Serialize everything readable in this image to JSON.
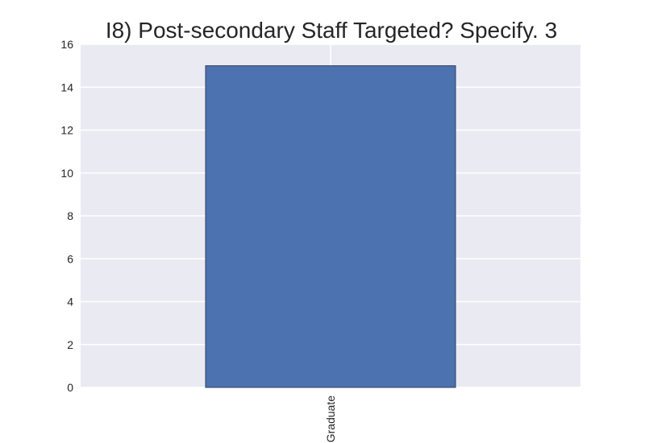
{
  "chart_data": {
    "type": "bar",
    "title": "I8) Post-secondary Staff Targeted? Specify. 3",
    "xlabel": "",
    "ylabel": "",
    "categories": [
      "Graduate"
    ],
    "values": [
      15
    ],
    "ylim": [
      0,
      16
    ],
    "yticks": [
      0,
      2,
      4,
      6,
      8,
      10,
      12,
      14,
      16
    ],
    "grid": true,
    "legend": "none"
  },
  "colors": {
    "plot_background": "#EAEAF2",
    "grid": "#FFFFFF",
    "bar_fill": "#4C72B0",
    "bar_edge": "#2F3F5C"
  }
}
